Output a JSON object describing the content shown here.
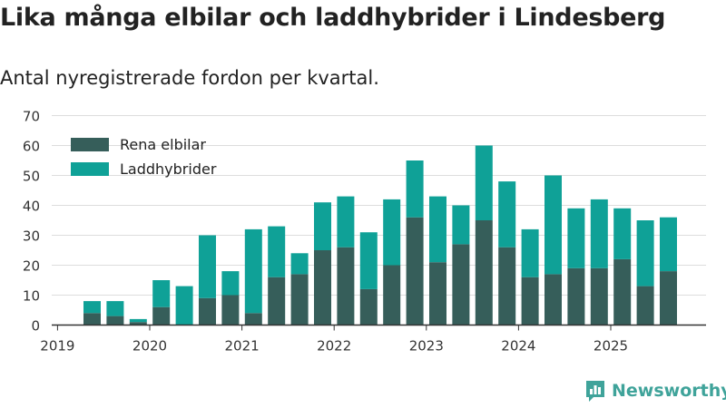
{
  "title": "Lika många elbilar och laddhybrider i Lindesberg",
  "subtitle": "Antal nyregistrerade fordon per kvartal.",
  "brand": {
    "name": "Newsworthy",
    "icon": "bar-chart-icon",
    "color": "#3fa39a"
  },
  "colors": {
    "rena": "#365e5a",
    "ladd": "#0fa197",
    "grid": "#dddddd",
    "axis": "#333333"
  },
  "chart_data": {
    "type": "bar",
    "stacked": true,
    "categories": [
      "2019 Q2",
      "2019 Q3",
      "2019 Q4",
      "2020 Q1",
      "2020 Q2",
      "2020 Q3",
      "2020 Q4",
      "2021 Q1",
      "2021 Q2",
      "2021 Q3",
      "2021 Q4",
      "2022 Q1",
      "2022 Q2",
      "2022 Q3",
      "2022 Q4",
      "2023 Q1",
      "2023 Q2",
      "2023 Q3",
      "2023 Q4",
      "2024 Q1",
      "2024 Q2",
      "2024 Q3",
      "2024 Q4",
      "2025 Q1",
      "2025 Q2",
      "2025 Q3"
    ],
    "series": [
      {
        "name": "Rena elbilar",
        "values": [
          4,
          3,
          1,
          6,
          0,
          9,
          10,
          4,
          16,
          17,
          25,
          26,
          12,
          20,
          36,
          21,
          27,
          35,
          26,
          16,
          17,
          19,
          19,
          22,
          13,
          18
        ]
      },
      {
        "name": "Laddhybrider",
        "values": [
          4,
          5,
          1,
          9,
          13,
          21,
          8,
          28,
          17,
          7,
          16,
          17,
          19,
          22,
          19,
          22,
          13,
          25,
          22,
          16,
          33,
          20,
          23,
          17,
          22,
          18
        ]
      }
    ],
    "x_ticks": [
      "2019",
      "2020",
      "2021",
      "2022",
      "2023",
      "2024",
      "2025"
    ],
    "y_ticks": [
      0,
      10,
      20,
      30,
      40,
      50,
      60,
      70
    ],
    "ylim": [
      0,
      70
    ],
    "legend_position": "top-left",
    "grid": true,
    "xlabel": "",
    "ylabel": ""
  }
}
